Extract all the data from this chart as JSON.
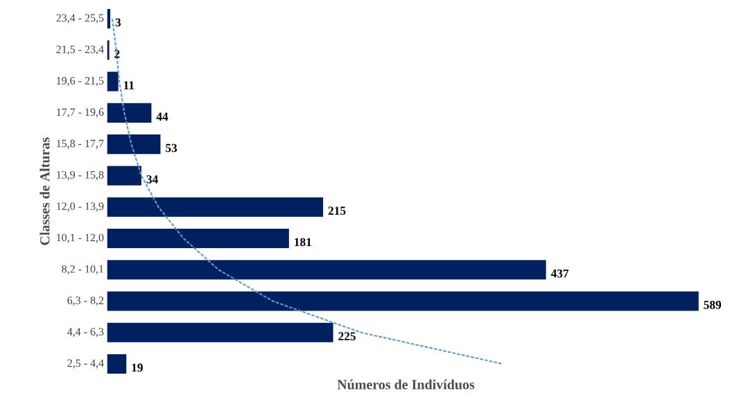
{
  "chart_data": {
    "type": "bar",
    "orientation": "horizontal",
    "xlabel": "Números de Indivíduos",
    "ylabel": "Classes de Alturas",
    "categories": [
      "23,4 - 25,5",
      "21,5 - 23,4",
      "19,6 - 21,5",
      "17,7 - 19,6",
      "15,8 - 17,7",
      "13,9 - 15,8",
      "12,0 - 13,9",
      "10,1 - 12,0",
      "8,2 - 10,1",
      "6,3 - 8,2",
      "4,4 - 6,3",
      "2,5 - 4,4"
    ],
    "series": [
      {
        "color": "#002060",
        "values": [
          3,
          2,
          11,
          44,
          53,
          34,
          215,
          181,
          437,
          589,
          225,
          19
        ],
        "value_labels": [
          "3",
          "2",
          "11",
          "44",
          "53",
          "34",
          "215",
          "181",
          "437",
          "589",
          "225",
          "19"
        ]
      },
      {
        "type": "line",
        "color": "#5b9bd5",
        "line_style": "dashed",
        "marker": "none",
        "values": [
          5,
          9,
          12,
          17,
          24,
          34,
          51,
          76,
          111,
          165,
          253,
          394
        ]
      }
    ],
    "grid": false
  }
}
